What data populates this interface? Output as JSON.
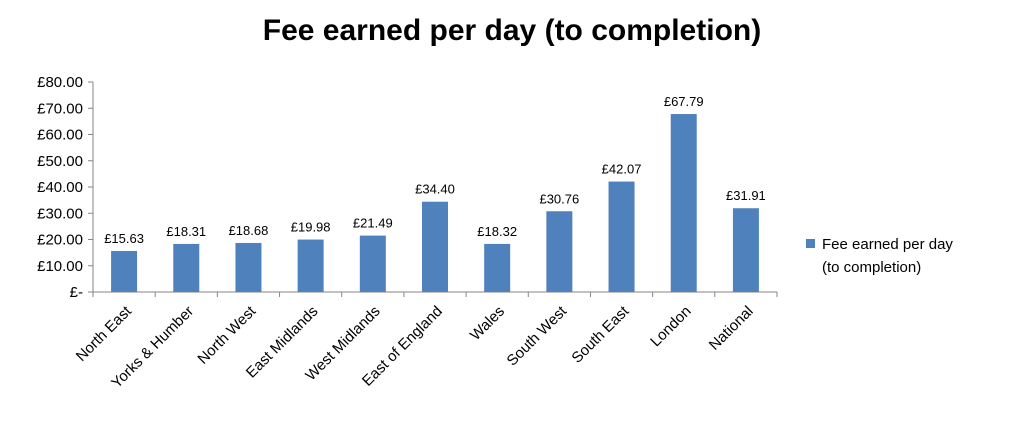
{
  "chart_data": {
    "type": "bar",
    "title": "Fee earned per day (to completion)",
    "xlabel": "",
    "ylabel": "",
    "ylim": [
      0,
      80
    ],
    "y_ticks": [
      "£-",
      "£10.00",
      "£20.00",
      "£30.00",
      "£40.00",
      "£50.00",
      "£60.00",
      "£70.00",
      "£80.00"
    ],
    "categories": [
      "North East",
      "Yorks & Humber",
      "North West",
      "East Midlands",
      "West Midlands",
      "East of England",
      "Wales",
      "South West",
      "South East",
      "London",
      "National"
    ],
    "series": [
      {
        "name": "Fee earned per day (to completion)",
        "legend_lines": [
          "Fee earned per day",
          "(to completion)"
        ],
        "color": "#4F81BD",
        "values": [
          15.63,
          18.31,
          18.68,
          19.98,
          21.49,
          34.4,
          18.32,
          30.76,
          42.07,
          67.79,
          31.91
        ],
        "labels": [
          "£15.63",
          "£18.31",
          "£18.68",
          "£19.98",
          "£21.49",
          "£34.40",
          "£18.32",
          "£30.76",
          "£42.07",
          "£67.79",
          "£31.91"
        ]
      }
    ],
    "grid": false,
    "legend_position": "right"
  }
}
